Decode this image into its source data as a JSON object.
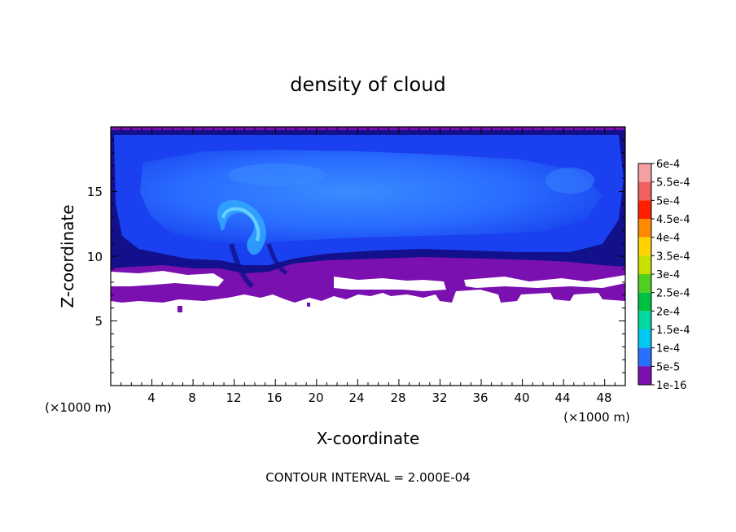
{
  "chart_data": {
    "type": "heatmap",
    "title": "density of cloud",
    "xlabel": "X-coordinate",
    "ylabel": "Z-coordinate",
    "x_unit_left": "(×1000 m)",
    "x_unit_right": "(×1000 m)",
    "footer": "CONTOUR INTERVAL = 2.000E-04",
    "xlim": [
      0,
      50
    ],
    "ylim": [
      0,
      20
    ],
    "x_ticks": [
      "4",
      "8",
      "12",
      "16",
      "20",
      "24",
      "28",
      "32",
      "36",
      "40",
      "44",
      "48"
    ],
    "y_ticks": [
      "5",
      "10",
      "15"
    ],
    "x_tick_values": [
      4,
      8,
      12,
      16,
      20,
      24,
      28,
      32,
      36,
      40,
      44,
      48
    ],
    "y_tick_values": [
      5,
      10,
      15
    ],
    "colorbar": {
      "labels": [
        "6e-4",
        "5.5e-4",
        "5e-4",
        "4.5e-4",
        "4e-4",
        "3.5e-4",
        "3e-4",
        "2.5e-4",
        "2e-4",
        "1.5e-4",
        "1e-4",
        "5e-5",
        "1e-16"
      ],
      "colors": [
        "#f4a0a0",
        "#f06060",
        "#ff2000",
        "#ff8a00",
        "#ffd200",
        "#c8e000",
        "#50d020",
        "#00c040",
        "#00d8a0",
        "#00c8f0",
        "#2a70ff",
        "#1010d0",
        "#7a10b0"
      ]
    },
    "regions": [
      {
        "name": "cloud-top-edge",
        "level": "1e-16",
        "color": "#6a1aa8"
      },
      {
        "name": "cloud-body",
        "level": "1e-4",
        "color": "#1a40f0"
      },
      {
        "name": "cloud-core",
        "level": "1.5e-4",
        "color": "#2a70ff"
      },
      {
        "name": "updraft-plume",
        "level": "1.5e-4",
        "color": "#30a8ff"
      },
      {
        "name": "cloud-base-band",
        "level": "1e-16",
        "color": "#7a10b0"
      },
      {
        "name": "dark-base-layer",
        "level": "5e-5",
        "color": "#12108a"
      }
    ]
  }
}
